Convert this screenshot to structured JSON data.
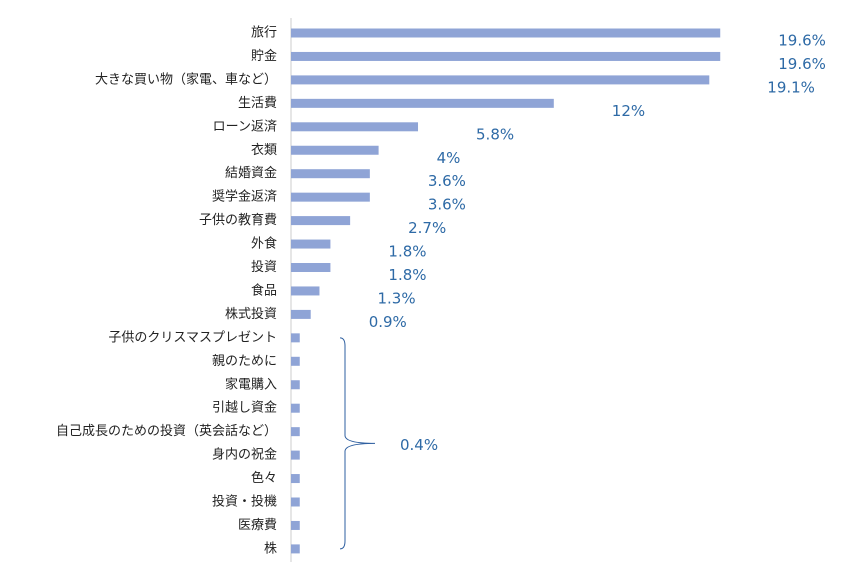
{
  "chart_data": {
    "type": "barh",
    "categories": [
      "旅行",
      "貯金",
      "大きな買い物（家電、車など）",
      "生活費",
      "ローン返済",
      "衣類",
      "結婚資金",
      "奨学金返済",
      "子供の教育費",
      "外食",
      "投資",
      "食品",
      "株式投資",
      "子供のクリスマスプレゼント",
      "親のために",
      "家電購入",
      "引越し資金",
      "自己成長のための投資（英会話など）",
      "身内の祝金",
      "色々",
      "投資・投機",
      "医療費",
      "株"
    ],
    "values": [
      19.6,
      19.6,
      19.1,
      12,
      5.8,
      4,
      3.6,
      3.6,
      2.7,
      1.8,
      1.8,
      1.3,
      0.9,
      0.4,
      0.4,
      0.4,
      0.4,
      0.4,
      0.4,
      0.4,
      0.4,
      0.4,
      0.4
    ],
    "value_labels": [
      "19.6%",
      "19.6%",
      "19.1%",
      "12%",
      "5.8%",
      "4%",
      "3.6%",
      "3.6%",
      "2.7%",
      "1.8%",
      "1.8%",
      "1.3%",
      "0.9%",
      null,
      null,
      null,
      null,
      null,
      null,
      null,
      null,
      null,
      null
    ],
    "grouped_label": "0.4%",
    "color": "#8fa4d6",
    "xlim": [
      0,
      20
    ]
  }
}
